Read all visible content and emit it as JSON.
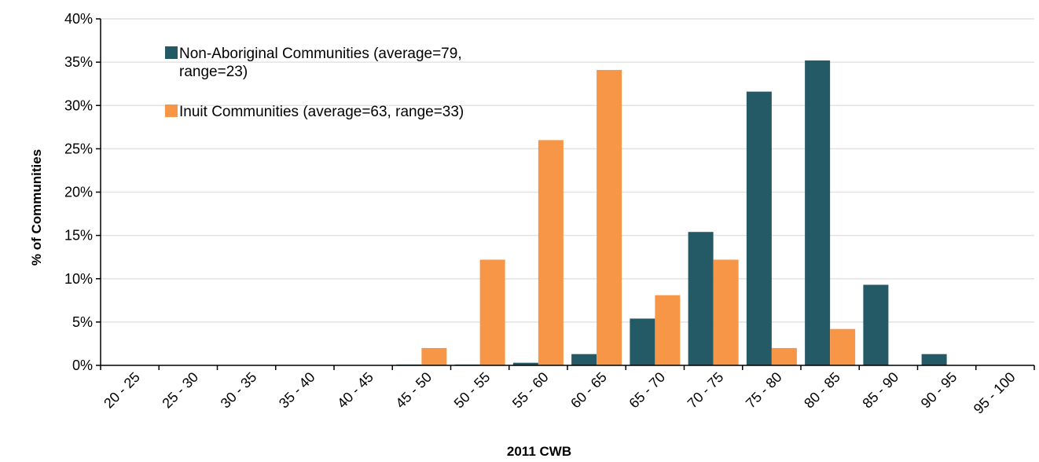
{
  "chart_data": {
    "type": "bar",
    "title": "",
    "xlabel": "2011 CWB",
    "ylabel": "% of Communities",
    "ylim": [
      0,
      40
    ],
    "y_ticks": [
      "0%",
      "5%",
      "10%",
      "15%",
      "20%",
      "25%",
      "30%",
      "35%",
      "40%"
    ],
    "grid": true,
    "legend_position": "top-left",
    "categories": [
      "20 - 25",
      "25 - 30",
      "30 - 35",
      "35 - 40",
      "40 - 45",
      "45 - 50",
      "50 - 55",
      "55 - 60",
      "60 - 65",
      "65 - 70",
      "70 - 75",
      "75 - 80",
      "80 - 85",
      "85 - 90",
      "90 - 95",
      "95 - 100"
    ],
    "series": [
      {
        "name": "Non-Aboriginal Communities (average=79, range=23)",
        "legend_lines": [
          "Non-Aboriginal Communities (average=79,",
          "range=23)"
        ],
        "color": "#245a66",
        "values": [
          0,
          0,
          0,
          0,
          0,
          0.1,
          0.1,
          0.3,
          1.3,
          5.4,
          15.4,
          31.6,
          35.2,
          9.3,
          1.3,
          0
        ]
      },
      {
        "name": "Inuit Communities (average=63, range=33)",
        "legend_lines": [
          "Inuit Communities (average=63, range=33)"
        ],
        "color": "#f79646",
        "values": [
          0,
          0,
          0,
          0,
          0,
          2.0,
          12.2,
          26.0,
          34.1,
          8.1,
          12.2,
          2.0,
          4.2,
          0,
          0,
          0
        ]
      }
    ]
  }
}
